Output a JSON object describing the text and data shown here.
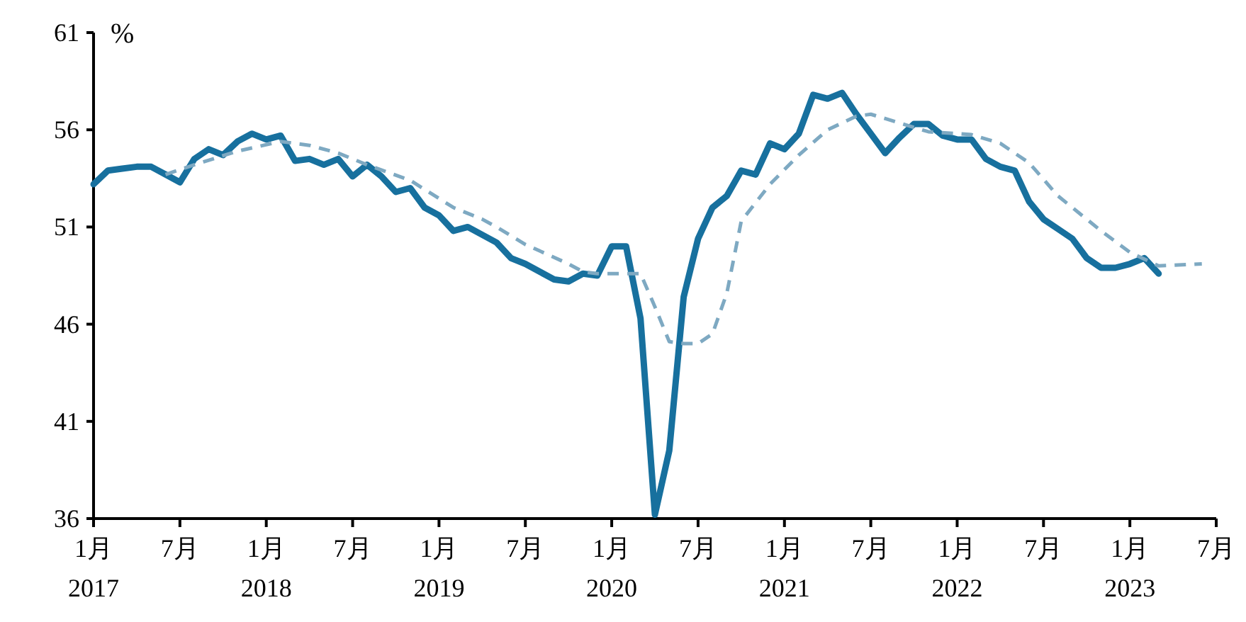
{
  "chart_data": {
    "type": "line",
    "ylabel": "%",
    "x": [
      "2017-01",
      "2017-02",
      "2017-03",
      "2017-04",
      "2017-05",
      "2017-06",
      "2017-07",
      "2017-08",
      "2017-09",
      "2017-10",
      "2017-11",
      "2017-12",
      "2018-01",
      "2018-02",
      "2018-03",
      "2018-04",
      "2018-05",
      "2018-06",
      "2018-07",
      "2018-08",
      "2018-09",
      "2018-10",
      "2018-11",
      "2018-12",
      "2019-01",
      "2019-02",
      "2019-03",
      "2019-04",
      "2019-05",
      "2019-06",
      "2019-07",
      "2019-08",
      "2019-09",
      "2019-10",
      "2019-11",
      "2019-12",
      "2020-01",
      "2020-02",
      "2020-03",
      "2020-04",
      "2020-05",
      "2020-06",
      "2020-07",
      "2020-08",
      "2020-09",
      "2020-10",
      "2020-11",
      "2020-12",
      "2021-01",
      "2021-02",
      "2021-03",
      "2021-04",
      "2021-05",
      "2021-06",
      "2021-07",
      "2021-08",
      "2021-09",
      "2021-10",
      "2021-11",
      "2021-12",
      "2022-01",
      "2022-02",
      "2022-03",
      "2022-04",
      "2022-05",
      "2022-06",
      "2022-07",
      "2022-08",
      "2022-09",
      "2022-10",
      "2022-11",
      "2022-12",
      "2023-01",
      "2023-02",
      "2023-03"
    ],
    "series": [
      {
        "color": "#17709e",
        "line_style": "solid",
        "values": [
          53.2,
          53.9,
          54.0,
          54.1,
          54.1,
          53.7,
          53.3,
          54.5,
          55.0,
          54.7,
          55.4,
          55.8,
          55.5,
          55.7,
          54.4,
          54.5,
          54.2,
          54.5,
          53.6,
          54.2,
          53.6,
          52.8,
          53.0,
          52.0,
          51.6,
          50.8,
          51.0,
          50.6,
          50.2,
          49.4,
          49.1,
          48.7,
          48.3,
          48.2,
          48.6,
          48.5,
          50.0,
          50.0,
          46.3,
          36.2,
          39.5,
          47.4,
          50.4,
          52.0,
          52.6,
          53.9,
          53.7,
          55.3,
          55.0,
          55.8,
          57.8,
          57.6,
          57.9,
          56.8,
          55.8,
          54.8,
          55.6,
          56.3,
          56.3,
          55.7,
          55.5,
          55.5,
          54.5,
          54.1,
          53.9,
          52.3,
          51.4,
          50.9,
          50.4,
          49.4,
          48.9,
          48.9,
          49.1,
          49.4,
          48.6
        ]
      },
      {
        "color": "#7ea9c2",
        "line_style": "dashed",
        "x": [
          "2017-06",
          "2017-08",
          "2017-11",
          "2018-02",
          "2018-04",
          "2018-06",
          "2018-08",
          "2018-11",
          "2019-02",
          "2019-04",
          "2019-05",
          "2019-07",
          "2019-10",
          "2019-11",
          "2019-12",
          "2020-03",
          "2020-04",
          "2020-05",
          "2020-06",
          "2020-07",
          "2020-08",
          "2020-09",
          "2020-10",
          "2020-12",
          "2021-02",
          "2021-04",
          "2021-06",
          "2021-07",
          "2021-11",
          "2022-02",
          "2022-04",
          "2022-06",
          "2022-08",
          "2022-11",
          "2023-01",
          "2023-03",
          "2023-06"
        ],
        "values": [
          53.7,
          54.2,
          54.9,
          55.4,
          55.2,
          54.8,
          54.2,
          53.4,
          52.0,
          51.4,
          51.0,
          50.1,
          49.1,
          48.7,
          48.6,
          48.6,
          46.9,
          45.1,
          45.0,
          45.0,
          45.5,
          47.6,
          51.3,
          53.2,
          54.7,
          56.0,
          56.7,
          56.8,
          55.9,
          55.75,
          55.3,
          54.3,
          52.6,
          50.8,
          49.7,
          49.0,
          49.1
        ]
      }
    ],
    "xlim": [
      "2017-01",
      "2023-07"
    ],
    "xticks": [
      {
        "value": "2017-01",
        "label": "1月\n2017"
      },
      {
        "value": "2017-07",
        "label": "7月"
      },
      {
        "value": "2018-01",
        "label": "1月\n2018"
      },
      {
        "value": "2018-07",
        "label": "7月"
      },
      {
        "value": "2019-01",
        "label": "1月\n2019"
      },
      {
        "value": "2019-07",
        "label": "7月"
      },
      {
        "value": "2020-01",
        "label": "1月\n2020"
      },
      {
        "value": "2020-07",
        "label": "7月"
      },
      {
        "value": "2021-01",
        "label": "1月\n2021"
      },
      {
        "value": "2021-07",
        "label": "7月"
      },
      {
        "value": "2022-01",
        "label": "1月\n2022"
      },
      {
        "value": "2022-07",
        "label": "7月"
      },
      {
        "value": "2023-01",
        "label": "1月\n2023"
      },
      {
        "value": "2023-07",
        "label": "7月"
      }
    ],
    "ylim": [
      36,
      61
    ],
    "yticks": [
      36,
      41,
      46,
      51,
      56,
      61
    ],
    "grid": false
  }
}
